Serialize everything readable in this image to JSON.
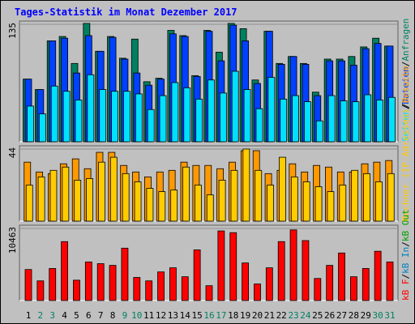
{
  "title": "Tages-Statistik im Monat Dezember 2017",
  "legend_separator": "/",
  "chart_data": [
    {
      "type": "bar",
      "ylim": [
        0,
        135
      ],
      "yticks": [
        135
      ],
      "series": [
        {
          "name": "Anfragen",
          "color": "#008060",
          "values": [
            72,
            60,
            116,
            121,
            90,
            136,
            104,
            121,
            96,
            118,
            69,
            73,
            128,
            122,
            76,
            128,
            103,
            136,
            130,
            71,
            127,
            90,
            98,
            90,
            57,
            95,
            95,
            98,
            109,
            119,
            110
          ]
        },
        {
          "name": "Dateien",
          "color": "#0040ff",
          "values": [
            72,
            60,
            116,
            119,
            79,
            122,
            104,
            120,
            95,
            79,
            65,
            72,
            124,
            121,
            75,
            127,
            93,
            134,
            116,
            67,
            127,
            89,
            98,
            89,
            53,
            93,
            93,
            88,
            107,
            113,
            110
          ]
        },
        {
          "name": "Seiten",
          "color": "#00e0ff",
          "values": [
            41,
            32,
            64,
            58,
            48,
            77,
            60,
            58,
            58,
            55,
            37,
            53,
            68,
            62,
            49,
            71,
            56,
            81,
            60,
            38,
            74,
            49,
            53,
            46,
            24,
            53,
            47,
            46,
            54,
            48,
            51
          ]
        }
      ]
    },
    {
      "type": "bar",
      "ylim": [
        0,
        44
      ],
      "yticks": [
        44
      ],
      "series": [
        {
          "name": "Besuche",
          "color": "#ff9900",
          "values": [
            36,
            30,
            29,
            35,
            38,
            32,
            42,
            42,
            34,
            30,
            27,
            30,
            31,
            36,
            34,
            34,
            32,
            36,
            43,
            43,
            29,
            31,
            35,
            30,
            34,
            33,
            30,
            30,
            35,
            36,
            37
          ]
        },
        {
          "name": "Rechner (IP-Adressen)",
          "color": "#ffcc00",
          "values": [
            22,
            27,
            31,
            33,
            25,
            26,
            36,
            39,
            29,
            24,
            20,
            18,
            19,
            33,
            22,
            16,
            25,
            31,
            44,
            31,
            22,
            39,
            27,
            24,
            21,
            18,
            22,
            31,
            29,
            24,
            29
          ]
        }
      ]
    },
    {
      "type": "bar",
      "ylim": [
        0,
        10463
      ],
      "yticks": [
        10463
      ],
      "categories": [
        "1",
        "2",
        "3",
        "4",
        "5",
        "6",
        "7",
        "8",
        "9",
        "10",
        "11",
        "12",
        "13",
        "14",
        "15",
        "16",
        "17",
        "18",
        "19",
        "20",
        "21",
        "22",
        "23",
        "24",
        "25",
        "26",
        "27",
        "28",
        "29",
        "30",
        "31"
      ],
      "category_colors": [
        "#000000",
        "#008060",
        "#008060",
        "#000000",
        "#000000",
        "#000000",
        "#000000",
        "#000000",
        "#008060",
        "#008060",
        "#000000",
        "#000000",
        "#000000",
        "#000000",
        "#000000",
        "#008060",
        "#008060",
        "#000000",
        "#000000",
        "#000000",
        "#000000",
        "#000000",
        "#008060",
        "#008060",
        "#000000",
        "#000000",
        "#000000",
        "#000000",
        "#000000",
        "#008060",
        "#008060"
      ],
      "series": [
        {
          "name": "kB F",
          "color": "#ff0000",
          "values": [
            4500,
            2850,
            4650,
            8550,
            2950,
            5600,
            5350,
            5100,
            7600,
            3350,
            2850,
            4150,
            4750,
            3450,
            7350,
            2150,
            10100,
            9850,
            5450,
            2400,
            4750,
            8550,
            10250,
            8700,
            3200,
            5100,
            6900,
            3450,
            4650,
            7150,
            5600
          ]
        }
      ],
      "legend_extra": [
        {
          "name": "kB In",
          "color": "#0080c0"
        },
        {
          "name": "kB Out",
          "color": "#00a000"
        }
      ]
    }
  ]
}
